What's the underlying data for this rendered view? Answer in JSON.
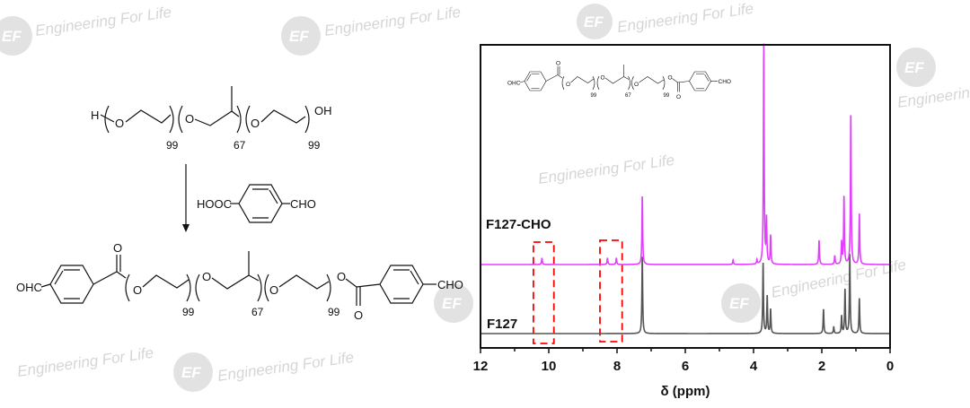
{
  "watermark": {
    "text": "Engineering For Life",
    "logo": "EF"
  },
  "scheme": {
    "start": {
      "h": "H",
      "o1": "O",
      "o2": "O",
      "o3": "O",
      "oh": "OH",
      "n1": "99",
      "n2": "67",
      "n3": "99"
    },
    "reagent": {
      "left": "HOOC",
      "right": "CHO"
    },
    "product": {
      "ohc": "OHC",
      "o_carbonyl1": "O",
      "o1": "O",
      "o2": "O",
      "o3": "O",
      "o4": "O",
      "o_carbonyl2": "O",
      "cho": "CHO",
      "n1": "99",
      "n2": "67",
      "n3": "99"
    },
    "arrow_icon": "down-arrow"
  },
  "chart_data": {
    "type": "line",
    "title": "",
    "xlabel": "δ (ppm)",
    "ylabel": "",
    "xlim": [
      12,
      0
    ],
    "x_reversed": true,
    "xticks": [
      "12",
      "10",
      "8",
      "6",
      "4",
      "2",
      "0"
    ],
    "y_axis_shown": false,
    "grid": false,
    "series": [
      {
        "name": "F127-CHO",
        "color": "#e040fb",
        "offset_position": "upper",
        "peaks_ppm_relative_intensity": [
          [
            10.2,
            3
          ],
          [
            8.28,
            3
          ],
          [
            8.02,
            3
          ],
          [
            7.26,
            31
          ],
          [
            4.6,
            2
          ],
          [
            3.9,
            2
          ],
          [
            3.7,
            100
          ],
          [
            3.62,
            20
          ],
          [
            3.5,
            13
          ],
          [
            2.08,
            11
          ],
          [
            1.62,
            4
          ],
          [
            1.42,
            10
          ],
          [
            1.35,
            31
          ],
          [
            1.15,
            69
          ],
          [
            0.9,
            23
          ]
        ]
      },
      {
        "name": "F127",
        "color": "#555555",
        "offset_position": "lower",
        "peaks_ppm_relative_intensity": [
          [
            7.26,
            35
          ],
          [
            3.72,
            32
          ],
          [
            3.6,
            17
          ],
          [
            3.5,
            11
          ],
          [
            1.95,
            11
          ],
          [
            1.65,
            3
          ],
          [
            1.42,
            8
          ],
          [
            1.32,
            20
          ],
          [
            1.18,
            36
          ],
          [
            0.9,
            16
          ]
        ]
      }
    ],
    "highlight_boxes_ppm": [
      [
        10.45,
        9.85
      ],
      [
        8.5,
        7.85
      ]
    ],
    "highlight_color": "#ff0000"
  }
}
